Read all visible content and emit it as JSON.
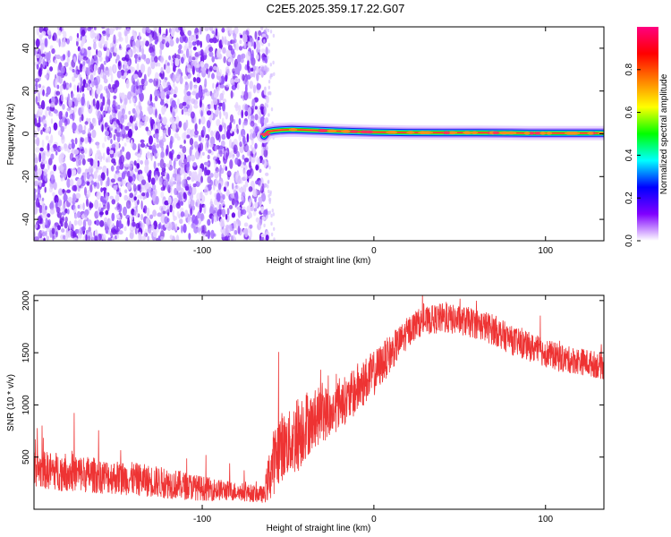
{
  "figure_title": "C2E5.2025.359.17.22.G07",
  "chart_data": [
    {
      "type": "heatmap",
      "xlabel": "Height of straight line (km)",
      "ylabel": "Frequency (Hz)",
      "xlim": [
        -198,
        134
      ],
      "ylim": [
        -50,
        50
      ],
      "xticks": [
        -100,
        0,
        100
      ],
      "yticks": [
        -40,
        -20,
        0,
        20,
        40
      ],
      "noise_region_x": [
        -198,
        -64
      ],
      "tracking_line": {
        "x": [
          -64,
          -62,
          -58,
          -54,
          -48,
          -40,
          -30,
          -20,
          -10,
          0,
          20,
          40,
          60,
          80,
          90,
          100,
          110,
          120,
          134
        ],
        "y": [
          -1,
          1,
          1.5,
          1.8,
          2,
          1.8,
          1.5,
          1.2,
          1,
          0.8,
          0.6,
          0.5,
          0.5,
          0.4,
          0.3,
          0.3,
          0.3,
          0.3,
          0.3
        ]
      },
      "colorbar": {
        "label": "Normalized spectral amplitude",
        "range": [
          0,
          1
        ],
        "ticks": [
          0.0,
          0.2,
          0.4,
          0.6,
          0.8
        ],
        "tick_labels": [
          "0.0",
          "0.2",
          "0.4",
          "0.6",
          "0.8"
        ],
        "colors": [
          "#ffffff",
          "#8000ff",
          "#0000ff",
          "#00ffff",
          "#00ff00",
          "#ffff00",
          "#ff8000",
          "#ff0000",
          "#ff0080"
        ]
      },
      "grid": false
    },
    {
      "type": "line",
      "xlabel": "Height of straight line (km)",
      "ylabel": "SNR (10 * v/v)",
      "xlim": [
        -198,
        134
      ],
      "ylim": [
        0,
        2050
      ],
      "xticks": [
        -100,
        0,
        100
      ],
      "yticks": [
        500,
        1000,
        1500,
        2000
      ],
      "color": "#ee3333",
      "grid": false,
      "series": [
        {
          "x": [
            -198,
            -180,
            -160,
            -140,
            -120,
            -100,
            -80,
            -64,
            -60,
            -55,
            -50,
            -45,
            -40,
            -35,
            -30,
            -25,
            -20,
            -15,
            -10,
            -5,
            0,
            5,
            10,
            15,
            20,
            25,
            30,
            35,
            40,
            50,
            60,
            70,
            80,
            90,
            100,
            110,
            120,
            134
          ],
          "y": [
            380,
            360,
            320,
            290,
            250,
            200,
            170,
            140,
            380,
            600,
            620,
            700,
            820,
            830,
            940,
            900,
            1030,
            1050,
            1150,
            1230,
            1300,
            1400,
            1500,
            1600,
            1700,
            1780,
            1800,
            1820,
            1830,
            1810,
            1780,
            1720,
            1620,
            1560,
            1500,
            1440,
            1420,
            1370
          ],
          "spread": [
            180,
            190,
            170,
            160,
            150,
            120,
            90,
            80,
            300,
            350,
            300,
            380,
            350,
            250,
            300,
            220,
            250,
            220,
            250,
            230,
            220,
            200,
            180,
            160,
            150,
            140,
            130,
            140,
            150,
            140,
            150,
            150,
            140,
            140,
            140,
            130,
            130,
            130
          ]
        }
      ]
    }
  ]
}
